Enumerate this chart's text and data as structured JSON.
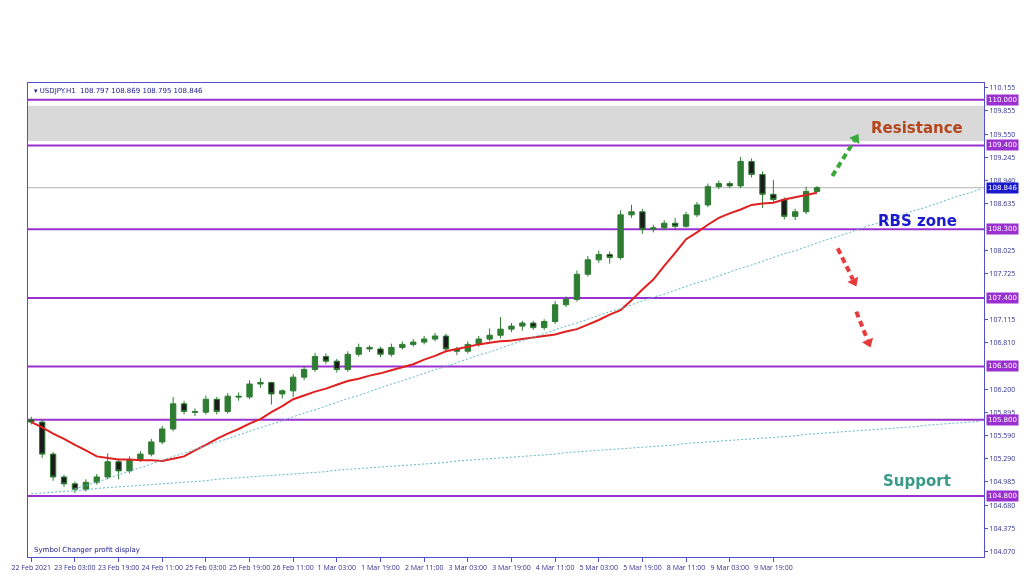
{
  "chart_data": {
    "type": "candlestick",
    "annotations": [
      "▾ USDJPY.H1  108.797 108.869 108.795 108.846",
      "Symbol Changer profit display",
      "Resistance",
      "RBS zone",
      "Support"
    ],
    "categories": [
      "22 Feb 2021",
      null,
      null,
      null,
      "23 Feb 03:00",
      null,
      null,
      null,
      "23 Feb 19:00",
      null,
      null,
      null,
      "24 Feb 11:00",
      null,
      null,
      null,
      "25 Feb 03:00",
      null,
      null,
      null,
      "25 Feb 19:00",
      null,
      null,
      null,
      "26 Feb 11:00",
      null,
      null,
      null,
      "1 Mar 03:00",
      null,
      null,
      null,
      "1 Mar 19:00",
      null,
      null,
      null,
      "2 Mar 11:00",
      null,
      null,
      null,
      "3 Mar 03:00",
      null,
      null,
      null,
      "3 Mar 19:00",
      null,
      null,
      null,
      "4 Mar 11:00",
      null,
      null,
      null,
      "5 Mar 03:00",
      null,
      null,
      null,
      "5 Mar 19:00",
      null,
      null,
      null,
      "8 Mar 11:00",
      null,
      null,
      null,
      "9 Mar 03:00",
      null,
      null,
      null,
      "9 Mar 19:00",
      null,
      null,
      null,
      null,
      null,
      null,
      null,
      null,
      null,
      null,
      null,
      null,
      null,
      null,
      null,
      null,
      null,
      null,
      null
    ],
    "ylim": [
      104.0,
      110.22
    ],
    "yticks": [
      {
        "value": 110.155,
        "label": "110.155"
      },
      {
        "value": 109.855,
        "label": "109.855"
      },
      {
        "value": 109.55,
        "label": "109.550"
      },
      {
        "value": 109.245,
        "label": "109.245"
      },
      {
        "value": 108.94,
        "label": "108.940"
      },
      {
        "value": 108.635,
        "label": "108.635"
      },
      {
        "value": 108.025,
        "label": "108.025"
      },
      {
        "value": 107.725,
        "label": "107.725"
      },
      {
        "value": 107.115,
        "label": "107.115"
      },
      {
        "value": 106.81,
        "label": "106.810"
      },
      {
        "value": 106.2,
        "label": "106.200"
      },
      {
        "value": 105.895,
        "label": "105.895"
      },
      {
        "value": 105.59,
        "label": "105.590"
      },
      {
        "value": 105.29,
        "label": "105.290"
      },
      {
        "value": 104.985,
        "label": "104.985"
      },
      {
        "value": 104.68,
        "label": "104.680"
      },
      {
        "value": 104.375,
        "label": "104.375"
      },
      {
        "value": 104.07,
        "label": "104.070"
      }
    ],
    "ref_lines": [
      {
        "axis": "y",
        "value": 110.0,
        "label": "110.000",
        "color": "#9b30d0"
      },
      {
        "axis": "y",
        "value": 109.4,
        "label": "109.400",
        "color": "#9b30d0"
      },
      {
        "axis": "y",
        "value": 108.846,
        "label": "108.846",
        "color": "#b4b4b4"
      },
      {
        "axis": "y",
        "value": 108.3,
        "label": "108.300",
        "color": "#9b30d0"
      },
      {
        "axis": "y",
        "value": 107.4,
        "label": "107.400",
        "color": "#9b30d0"
      },
      {
        "axis": "y",
        "value": 106.5,
        "label": "106.500",
        "color": "#9b30d0"
      },
      {
        "axis": "y",
        "value": 105.8,
        "label": "105.800",
        "color": "#9b30d0"
      },
      {
        "axis": "y",
        "value": 104.8,
        "label": "104.800",
        "color": "#9b30d0"
      }
    ],
    "bands": [
      {
        "axis": "y",
        "from": 109.46,
        "to": 109.92,
        "color": "#d9d9d9"
      }
    ],
    "series": [
      {
        "color": "#2e7d32",
        "ohlc": [
          [
            105.8,
            105.84,
            105.74,
            105.77
          ],
          [
            105.77,
            105.8,
            105.3,
            105.35
          ],
          [
            105.35,
            105.38,
            105.0,
            105.05
          ],
          [
            105.05,
            105.08,
            104.92,
            104.96
          ],
          [
            104.96,
            104.99,
            104.84,
            104.89
          ],
          [
            104.89,
            105.02,
            104.86,
            104.98
          ],
          [
            104.98,
            105.09,
            104.95,
            105.05
          ],
          [
            105.05,
            105.36,
            105.02,
            105.25
          ],
          [
            105.25,
            105.28,
            105.02,
            105.13
          ],
          [
            105.13,
            105.32,
            105.1,
            105.28
          ],
          [
            105.28,
            105.39,
            105.25,
            105.35
          ],
          [
            105.35,
            105.55,
            105.32,
            105.51
          ],
          [
            105.51,
            105.72,
            105.48,
            105.68
          ],
          [
            105.68,
            106.1,
            105.65,
            106.01
          ],
          [
            106.01,
            106.05,
            105.87,
            105.91
          ],
          [
            105.91,
            105.95,
            105.85,
            105.9
          ],
          [
            105.9,
            106.12,
            105.87,
            106.07
          ],
          [
            106.07,
            106.1,
            105.87,
            105.91
          ],
          [
            105.91,
            106.15,
            105.88,
            106.11
          ],
          [
            106.11,
            106.16,
            106.05,
            106.1
          ],
          [
            106.1,
            106.32,
            106.07,
            106.27
          ],
          [
            106.27,
            106.35,
            106.22,
            106.29
          ],
          [
            106.29,
            106.3,
            106.0,
            106.14
          ],
          [
            106.14,
            106.2,
            106.08,
            106.18
          ],
          [
            106.18,
            106.4,
            106.1,
            106.36
          ],
          [
            106.36,
            106.5,
            106.32,
            106.46
          ],
          [
            106.46,
            106.68,
            106.43,
            106.63
          ],
          [
            106.63,
            106.67,
            106.53,
            106.57
          ],
          [
            106.57,
            106.6,
            106.42,
            106.46
          ],
          [
            106.46,
            106.7,
            106.43,
            106.66
          ],
          [
            106.66,
            106.8,
            106.63,
            106.75
          ],
          [
            106.75,
            106.78,
            106.69,
            106.73
          ],
          [
            106.73,
            106.76,
            106.62,
            106.66
          ],
          [
            106.66,
            106.8,
            106.63,
            106.75
          ],
          [
            106.75,
            106.83,
            106.72,
            106.79
          ],
          [
            106.79,
            106.86,
            106.76,
            106.82
          ],
          [
            106.82,
            106.9,
            106.79,
            106.86
          ],
          [
            106.86,
            106.94,
            106.83,
            106.9
          ],
          [
            106.9,
            106.93,
            106.69,
            106.73
          ],
          [
            106.73,
            106.76,
            106.65,
            106.7
          ],
          [
            106.7,
            106.83,
            106.67,
            106.79
          ],
          [
            106.79,
            106.9,
            106.76,
            106.86
          ],
          [
            106.86,
            107.0,
            106.83,
            106.91
          ],
          [
            106.91,
            107.15,
            106.87,
            106.99
          ],
          [
            106.99,
            107.07,
            106.95,
            107.03
          ],
          [
            107.03,
            107.1,
            106.97,
            107.07
          ],
          [
            107.07,
            107.1,
            106.98,
            107.01
          ],
          [
            107.01,
            107.12,
            106.98,
            107.09
          ],
          [
            107.09,
            107.36,
            107.06,
            107.31
          ],
          [
            107.31,
            107.42,
            107.28,
            107.38
          ],
          [
            107.38,
            107.76,
            107.35,
            107.71
          ],
          [
            107.71,
            107.95,
            107.68,
            107.9
          ],
          [
            107.9,
            108.02,
            107.86,
            107.97
          ],
          [
            107.97,
            108.01,
            107.85,
            107.93
          ],
          [
            107.93,
            108.55,
            107.9,
            108.49
          ],
          [
            108.49,
            108.62,
            108.45,
            108.53
          ],
          [
            108.53,
            108.57,
            108.24,
            108.3
          ],
          [
            108.3,
            108.36,
            108.26,
            108.32
          ],
          [
            108.32,
            108.42,
            108.29,
            108.38
          ],
          [
            108.38,
            108.45,
            108.3,
            108.34
          ],
          [
            108.34,
            108.53,
            108.32,
            108.49
          ],
          [
            108.49,
            108.66,
            108.46,
            108.62
          ],
          [
            108.62,
            108.9,
            108.59,
            108.86
          ],
          [
            108.86,
            108.94,
            108.83,
            108.9
          ],
          [
            108.9,
            108.93,
            108.84,
            108.87
          ],
          [
            108.87,
            109.25,
            108.84,
            109.19
          ],
          [
            109.19,
            109.23,
            108.98,
            109.02
          ],
          [
            109.02,
            109.06,
            108.58,
            108.76
          ],
          [
            108.76,
            108.95,
            108.65,
            108.69
          ],
          [
            108.69,
            108.72,
            108.43,
            108.47
          ],
          [
            108.47,
            108.57,
            108.42,
            108.53
          ],
          [
            108.53,
            108.86,
            108.5,
            108.797
          ],
          [
            108.797,
            108.869,
            108.795,
            108.846
          ],
          null,
          null,
          null,
          null,
          null,
          null,
          null,
          null,
          null,
          null,
          null,
          null,
          null,
          null,
          null
        ]
      },
      {
        "type": "line",
        "color": "#e02020",
        "values": [
          105.77,
          105.7,
          105.62,
          105.55,
          105.47,
          105.4,
          105.32,
          105.3,
          105.28,
          105.28,
          105.27,
          105.27,
          105.26,
          105.29,
          105.32,
          105.4,
          105.47,
          105.55,
          105.62,
          105.68,
          105.75,
          105.81,
          105.9,
          105.98,
          106.07,
          106.12,
          106.17,
          106.21,
          106.26,
          106.31,
          106.34,
          106.38,
          106.41,
          106.45,
          106.49,
          106.53,
          106.59,
          106.64,
          106.7,
          106.73,
          106.76,
          106.79,
          106.81,
          106.83,
          106.84,
          106.86,
          106.88,
          106.9,
          106.92,
          106.96,
          106.99,
          107.05,
          107.11,
          107.18,
          107.24,
          107.37,
          107.51,
          107.64,
          107.82,
          107.99,
          108.17,
          108.26,
          108.36,
          108.45,
          108.51,
          108.56,
          108.62,
          108.64,
          108.65,
          108.69,
          108.72,
          108.75,
          108.78,
          null,
          null,
          null,
          null,
          null,
          null,
          null,
          null,
          null,
          null,
          null,
          null,
          null,
          null,
          null
        ]
      },
      {
        "type": "line",
        "color": "#5fb8c8",
        "line_style": "dotted",
        "values": [
          null,
          null,
          null,
          null,
          104.89,
          104.94,
          104.98,
          105.03,
          105.08,
          105.13,
          105.17,
          105.22,
          105.27,
          105.32,
          105.36,
          105.41,
          105.46,
          105.51,
          105.55,
          105.6,
          105.65,
          105.7,
          105.74,
          105.79,
          105.84,
          105.89,
          105.93,
          105.98,
          106.03,
          106.08,
          106.12,
          106.17,
          106.22,
          106.27,
          106.31,
          106.36,
          106.41,
          106.46,
          106.5,
          106.55,
          106.6,
          106.65,
          106.69,
          106.74,
          106.79,
          106.84,
          106.88,
          106.93,
          106.98,
          107.03,
          107.07,
          107.12,
          107.17,
          107.22,
          107.26,
          107.31,
          107.36,
          107.41,
          107.45,
          107.5,
          107.55,
          107.6,
          107.64,
          107.69,
          107.74,
          107.79,
          107.83,
          107.88,
          107.93,
          107.98,
          108.02,
          108.07,
          108.12,
          108.17,
          108.21,
          108.26,
          108.31,
          108.36,
          108.4,
          108.45,
          108.5,
          108.55,
          108.59,
          108.64,
          108.69,
          108.74,
          108.78,
          108.83
        ]
      },
      {
        "type": "line",
        "color": "#5fb8c8",
        "line_style": "dotted",
        "values": [
          104.83,
          104.84,
          104.85,
          104.86,
          104.87,
          104.88,
          104.9,
          104.91,
          104.92,
          104.93,
          104.94,
          104.95,
          104.96,
          104.97,
          104.98,
          104.99,
          105.0,
          105.02,
          105.03,
          105.04,
          105.05,
          105.06,
          105.07,
          105.08,
          105.09,
          105.1,
          105.11,
          105.12,
          105.14,
          105.15,
          105.16,
          105.17,
          105.18,
          105.19,
          105.2,
          105.21,
          105.22,
          105.23,
          105.24,
          105.26,
          105.27,
          105.28,
          105.29,
          105.3,
          105.31,
          105.32,
          105.33,
          105.34,
          105.35,
          105.37,
          105.38,
          105.39,
          105.4,
          105.41,
          105.42,
          105.43,
          105.44,
          105.45,
          105.46,
          105.47,
          105.49,
          105.5,
          105.51,
          105.52,
          105.53,
          105.54,
          105.55,
          105.56,
          105.57,
          105.58,
          105.59,
          105.61,
          105.62,
          105.63,
          105.64,
          105.65,
          105.66,
          105.67,
          105.68,
          105.69,
          105.7,
          105.71,
          105.73,
          105.74,
          105.75,
          105.76,
          105.77,
          105.78
        ]
      }
    ]
  }
}
